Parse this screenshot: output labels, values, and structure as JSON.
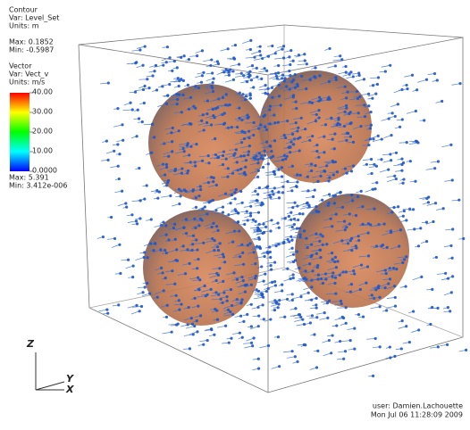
{
  "contour": {
    "title": "Contour",
    "var": "Var: Level_Set",
    "units": "Units: m",
    "max": "Max: 0.1852",
    "min": "Min: -0.5987"
  },
  "vector": {
    "title": "Vector",
    "var": "Var: Vect_v",
    "units": "Units: m/s",
    "ticks": [
      "40.00",
      "30.00",
      "20.00",
      "10.00",
      "0.0000"
    ],
    "max": "Max: 5.391",
    "min": "Min: 3.412e-006"
  },
  "axes": {
    "z": "Z",
    "y": "Y",
    "x": "X"
  },
  "footer": {
    "user": "user: Damien.Lachouette",
    "date": "Mon Jul 06 11:28:09 2009"
  }
}
